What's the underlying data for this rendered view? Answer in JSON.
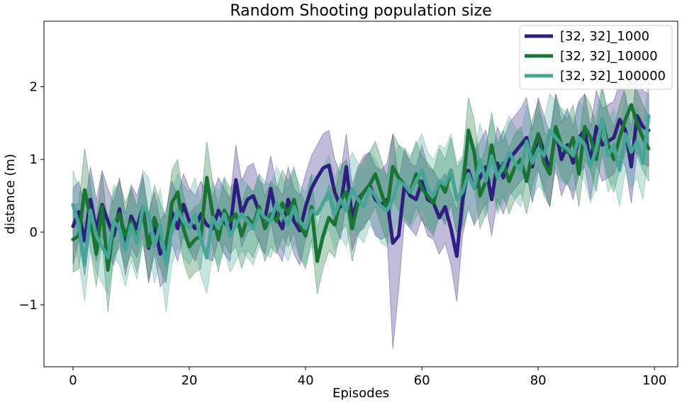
{
  "chart_data": {
    "type": "line",
    "title": "Random Shooting population size",
    "xlabel": "Episodes",
    "ylabel": "distance (m)",
    "xlim": [
      -5,
      104
    ],
    "ylim": [
      -1.85,
      2.9
    ],
    "xticks": [
      0,
      20,
      40,
      60,
      80,
      100
    ],
    "xtick_labels": [
      "0",
      "20",
      "40",
      "60",
      "80",
      "100"
    ],
    "yticks": [
      -1,
      0,
      1,
      2
    ],
    "ytick_labels": [
      "−1",
      "0",
      "1",
      "2"
    ],
    "grid": false,
    "legend_position": "top-right",
    "x": [
      0,
      1,
      2,
      3,
      4,
      5,
      6,
      7,
      8,
      9,
      10,
      11,
      12,
      13,
      14,
      15,
      16,
      17,
      18,
      19,
      20,
      21,
      22,
      23,
      24,
      25,
      26,
      27,
      28,
      29,
      30,
      31,
      32,
      33,
      34,
      35,
      36,
      37,
      38,
      39,
      40,
      41,
      42,
      43,
      44,
      45,
      46,
      47,
      48,
      49,
      50,
      51,
      52,
      53,
      54,
      55,
      56,
      57,
      58,
      59,
      60,
      61,
      62,
      63,
      64,
      65,
      66,
      67,
      68,
      69,
      70,
      71,
      72,
      73,
      74,
      75,
      76,
      77,
      78,
      79,
      80,
      81,
      82,
      83,
      84,
      85,
      86,
      87,
      88,
      89,
      90,
      91,
      92,
      93,
      94,
      95,
      96,
      97,
      98,
      99
    ],
    "series": [
      {
        "name": "[32, 32]_1000",
        "color": "#2e1f7f",
        "mean": [
          0.08,
          0.28,
          -0.12,
          0.45,
          0.02,
          0.38,
          0.15,
          -0.05,
          0.32,
          -0.18,
          0.22,
          0.05,
          0.35,
          -0.22,
          0.12,
          -0.3,
          -0.18,
          0.28,
          0.05,
          0.38,
          0.15,
          0.05,
          0.25,
          0.1,
          0.05,
          0.3,
          0.15,
          0.02,
          0.72,
          0.25,
          0.45,
          0.5,
          0.28,
          0.18,
          0.6,
          0.2,
          0.05,
          0.45,
          0.15,
          0.02,
          0.35,
          0.6,
          0.75,
          0.88,
          0.92,
          0.55,
          0.35,
          0.9,
          0.2,
          0.45,
          0.55,
          0.65,
          0.45,
          0.38,
          0.45,
          -0.15,
          -0.05,
          0.65,
          0.5,
          0.45,
          0.7,
          0.45,
          0.4,
          0.2,
          0.35,
          0.05,
          -0.33,
          0.45,
          0.85,
          0.6,
          0.75,
          0.9,
          0.45,
          0.95,
          0.75,
          1.0,
          1.1,
          1.2,
          1.3,
          0.9,
          1.35,
          1.1,
          0.85,
          1.4,
          1.0,
          1.2,
          0.95,
          1.3,
          1.4,
          0.95,
          1.45,
          1.2,
          1.25,
          1.3,
          1.55,
          1.4,
          0.9,
          1.6,
          1.45,
          1.4
        ],
        "lower": [
          -0.45,
          -0.1,
          -0.6,
          0.05,
          -0.4,
          -0.05,
          -0.3,
          -0.45,
          -0.1,
          -0.6,
          -0.2,
          -0.35,
          -0.05,
          -0.7,
          -0.3,
          -0.75,
          -0.65,
          -0.15,
          -0.4,
          -0.05,
          -0.25,
          -0.4,
          -0.15,
          -0.35,
          -0.4,
          -0.1,
          -0.3,
          -0.4,
          0.25,
          -0.2,
          0.0,
          0.05,
          -0.15,
          -0.3,
          0.15,
          -0.25,
          -0.4,
          0.0,
          -0.3,
          -0.45,
          -0.1,
          0.15,
          0.3,
          0.4,
          0.45,
          0.1,
          -0.1,
          0.4,
          -0.25,
          0.0,
          0.05,
          0.2,
          -0.05,
          -0.1,
          -0.05,
          -1.6,
          -0.8,
          0.15,
          0.05,
          -0.05,
          0.2,
          -0.05,
          -0.1,
          -0.3,
          -0.15,
          -0.45,
          -0.95,
          -0.05,
          0.35,
          0.1,
          0.25,
          0.4,
          -0.05,
          0.45,
          0.25,
          0.5,
          0.6,
          0.7,
          0.8,
          0.4,
          0.85,
          0.6,
          0.35,
          0.9,
          0.5,
          0.7,
          0.45,
          0.8,
          0.9,
          0.45,
          0.95,
          0.7,
          0.75,
          0.8,
          1.05,
          0.9,
          0.4,
          1.1,
          0.95,
          0.9
        ],
        "upper": [
          0.6,
          0.7,
          0.35,
          0.9,
          0.45,
          0.85,
          0.6,
          0.4,
          0.75,
          0.25,
          0.65,
          0.5,
          0.8,
          0.25,
          0.55,
          0.15,
          0.3,
          0.7,
          0.5,
          0.8,
          0.6,
          0.5,
          0.7,
          0.55,
          0.5,
          0.75,
          0.6,
          0.45,
          1.2,
          0.7,
          0.9,
          0.95,
          0.7,
          0.65,
          1.05,
          0.65,
          0.5,
          0.9,
          0.6,
          0.5,
          0.8,
          1.05,
          1.2,
          1.35,
          1.4,
          1.0,
          0.8,
          1.35,
          0.65,
          0.9,
          1.05,
          1.1,
          0.9,
          0.85,
          0.95,
          1.35,
          0.7,
          1.15,
          0.95,
          0.9,
          1.2,
          0.9,
          0.85,
          0.7,
          0.8,
          0.55,
          0.3,
          0.9,
          1.35,
          1.1,
          1.25,
          1.4,
          0.95,
          1.45,
          1.25,
          1.5,
          1.6,
          1.7,
          1.85,
          1.4,
          1.85,
          1.6,
          1.35,
          1.9,
          1.5,
          1.7,
          1.45,
          1.8,
          1.9,
          1.45,
          1.95,
          1.7,
          1.75,
          1.8,
          2.05,
          1.9,
          1.4,
          2.3,
          1.95,
          1.9
        ]
      },
      {
        "name": "[32, 32]_10000",
        "color": "#187432",
        "mean": [
          -0.1,
          -0.05,
          0.58,
          0.2,
          -0.3,
          0.35,
          -0.52,
          0.1,
          0.25,
          -0.05,
          0.15,
          -0.1,
          0.3,
          -0.2,
          0.2,
          -0.05,
          -0.25,
          0.4,
          0.55,
          0.05,
          -0.2,
          -0.1,
          -0.05,
          0.75,
          0.25,
          -0.1,
          0.3,
          0.15,
          0.25,
          -0.05,
          0.2,
          0.1,
          0.35,
          0.05,
          0.25,
          0.15,
          0.4,
          0.25,
          0.45,
          0.1,
          -0.05,
          0.35,
          -0.4,
          -0.05,
          0.2,
          0.1,
          0.45,
          0.55,
          0.05,
          0.4,
          0.55,
          0.65,
          0.8,
          0.55,
          0.3,
          0.9,
          0.75,
          0.65,
          0.55,
          0.8,
          0.6,
          0.5,
          0.4,
          0.7,
          0.55,
          0.85,
          0.45,
          0.55,
          1.4,
          1.1,
          0.5,
          0.7,
          1.2,
          0.75,
          0.95,
          0.7,
          0.9,
          1.0,
          0.7,
          1.1,
          1.35,
          0.95,
          0.8,
          1.45,
          1.2,
          1.1,
          1.3,
          0.8,
          1.45,
          1.3,
          1.0,
          1.55,
          1.2,
          1.0,
          1.3,
          1.55,
          1.75,
          1.5,
          1.3,
          1.15
        ],
        "lower": [
          -0.55,
          -0.5,
          0.15,
          -0.25,
          -0.75,
          -0.1,
          -1.1,
          -0.35,
          -0.2,
          -0.5,
          -0.3,
          -0.55,
          -0.15,
          -0.65,
          -0.25,
          -0.5,
          -0.7,
          -0.05,
          0.1,
          -0.4,
          -0.65,
          -0.55,
          -0.5,
          0.25,
          -0.2,
          -0.55,
          -0.15,
          -0.3,
          -0.2,
          -0.5,
          -0.25,
          -0.35,
          -0.1,
          -0.4,
          -0.2,
          -0.3,
          -0.05,
          -0.2,
          0.0,
          -0.35,
          -0.5,
          -0.1,
          -0.85,
          -0.5,
          -0.25,
          -0.35,
          0.0,
          0.1,
          -0.4,
          -0.05,
          0.1,
          0.2,
          0.35,
          0.1,
          -0.15,
          0.45,
          0.3,
          0.2,
          0.1,
          0.35,
          0.15,
          0.05,
          -0.05,
          0.25,
          0.1,
          0.4,
          0.0,
          0.1,
          0.95,
          0.65,
          0.05,
          0.25,
          0.75,
          0.3,
          0.5,
          0.25,
          0.45,
          0.55,
          0.25,
          0.65,
          0.9,
          0.5,
          0.35,
          1.0,
          0.75,
          0.65,
          0.85,
          0.35,
          1.0,
          0.85,
          0.55,
          1.1,
          0.75,
          0.55,
          0.85,
          1.1,
          1.3,
          1.05,
          0.85,
          0.7
        ],
        "upper": [
          0.35,
          0.4,
          1.15,
          0.65,
          0.15,
          0.8,
          0.05,
          0.55,
          0.7,
          0.4,
          0.6,
          0.35,
          0.75,
          0.25,
          0.65,
          0.4,
          0.2,
          0.85,
          1.0,
          0.5,
          0.25,
          0.35,
          0.4,
          1.25,
          0.7,
          0.35,
          0.75,
          0.6,
          0.7,
          0.4,
          0.65,
          0.55,
          0.8,
          0.5,
          0.7,
          0.6,
          0.85,
          0.7,
          0.9,
          0.55,
          0.4,
          0.8,
          0.05,
          0.4,
          0.65,
          0.55,
          0.9,
          1.0,
          0.5,
          0.85,
          1.0,
          1.1,
          1.25,
          1.0,
          0.75,
          1.35,
          1.2,
          1.1,
          1.0,
          1.25,
          1.05,
          0.95,
          0.85,
          1.15,
          1.0,
          1.3,
          0.9,
          1.0,
          1.85,
          1.55,
          0.95,
          1.15,
          1.65,
          1.2,
          1.4,
          1.15,
          1.35,
          1.45,
          1.15,
          1.55,
          1.8,
          1.4,
          1.25,
          1.9,
          1.65,
          1.55,
          1.75,
          1.25,
          1.9,
          1.75,
          1.45,
          2.0,
          1.65,
          1.45,
          1.75,
          2.0,
          2.2,
          1.95,
          1.75,
          1.6
        ]
      },
      {
        "name": "[32, 32]_100000",
        "color": "#45a598",
        "mean": [
          0.38,
          0.1,
          -0.45,
          0.3,
          -0.05,
          -0.2,
          -0.35,
          0.15,
          0.05,
          -0.25,
          0.1,
          -0.15,
          0.35,
          0.25,
          -0.2,
          0.1,
          -0.45,
          0.05,
          0.3,
          0.15,
          0.05,
          0.25,
          -0.1,
          -0.35,
          0.2,
          0.05,
          0.25,
          -0.05,
          0.1,
          0.25,
          0.15,
          0.05,
          0.3,
          0.2,
          0.15,
          0.4,
          0.25,
          0.1,
          0.35,
          0.15,
          0.05,
          0.3,
          0.25,
          0.4,
          0.55,
          0.25,
          0.45,
          0.3,
          0.6,
          0.45,
          0.35,
          0.6,
          0.5,
          0.35,
          0.3,
          0.45,
          0.7,
          0.65,
          0.55,
          0.7,
          0.85,
          0.6,
          0.5,
          0.7,
          0.65,
          0.85,
          0.45,
          0.55,
          0.8,
          0.6,
          1.0,
          0.7,
          1.05,
          0.75,
          0.9,
          1.1,
          0.95,
          0.85,
          1.25,
          0.95,
          1.15,
          1.05,
          1.4,
          1.3,
          1.2,
          1.15,
          1.05,
          1.3,
          1.2,
          0.9,
          1.15,
          1.55,
          1.05,
          1.2,
          0.85,
          1.35,
          1.1,
          1.25,
          0.95,
          1.6
        ],
        "lower": [
          -0.1,
          -0.4,
          -0.95,
          -0.2,
          -0.55,
          -0.7,
          -0.85,
          -0.35,
          -0.45,
          -0.75,
          -0.4,
          -0.65,
          -0.15,
          -0.25,
          -0.7,
          -0.4,
          -1.1,
          -0.45,
          -0.2,
          -0.35,
          -0.45,
          -0.25,
          -0.6,
          -0.85,
          -0.3,
          -0.45,
          -0.25,
          -0.55,
          -0.4,
          -0.25,
          -0.35,
          -0.45,
          -0.2,
          -0.3,
          -0.35,
          -0.1,
          -0.25,
          -0.4,
          -0.15,
          -0.35,
          -0.45,
          -0.2,
          -0.25,
          -0.1,
          0.05,
          -0.25,
          -0.05,
          -0.2,
          0.1,
          -0.05,
          -0.15,
          0.1,
          0.0,
          -0.15,
          -0.2,
          -0.05,
          0.2,
          0.15,
          0.05,
          0.2,
          0.35,
          0.1,
          0.0,
          0.2,
          0.15,
          0.35,
          -0.05,
          0.05,
          0.3,
          0.1,
          0.5,
          0.2,
          0.55,
          0.25,
          0.4,
          0.6,
          0.45,
          0.35,
          0.75,
          0.45,
          0.65,
          0.55,
          0.9,
          0.8,
          0.7,
          0.65,
          0.55,
          0.8,
          0.7,
          0.4,
          0.65,
          1.05,
          0.55,
          0.7,
          0.35,
          0.85,
          0.6,
          0.75,
          0.45,
          1.1
        ],
        "upper": [
          0.85,
          0.6,
          0.05,
          0.8,
          0.45,
          0.3,
          0.15,
          0.65,
          0.55,
          0.25,
          0.6,
          0.35,
          0.85,
          0.75,
          0.3,
          0.6,
          0.05,
          0.55,
          0.8,
          0.65,
          0.55,
          0.75,
          0.4,
          0.15,
          0.7,
          0.55,
          0.75,
          0.45,
          0.6,
          0.75,
          0.65,
          0.55,
          0.8,
          0.7,
          0.65,
          0.9,
          0.75,
          0.6,
          0.85,
          0.65,
          0.55,
          0.8,
          0.75,
          0.9,
          1.05,
          0.75,
          0.95,
          0.8,
          1.1,
          0.95,
          0.85,
          1.1,
          1.0,
          0.85,
          0.8,
          0.95,
          1.2,
          1.15,
          1.05,
          1.2,
          1.35,
          1.1,
          1.0,
          1.2,
          1.15,
          1.35,
          0.95,
          1.05,
          1.3,
          1.1,
          1.5,
          1.2,
          1.55,
          1.25,
          1.4,
          1.6,
          1.45,
          1.35,
          1.75,
          1.45,
          1.65,
          1.55,
          1.9,
          1.8,
          1.7,
          1.65,
          1.55,
          1.8,
          1.7,
          1.4,
          1.65,
          2.05,
          1.55,
          1.7,
          1.35,
          1.85,
          1.6,
          1.75,
          1.45,
          2.1
        ]
      }
    ]
  }
}
